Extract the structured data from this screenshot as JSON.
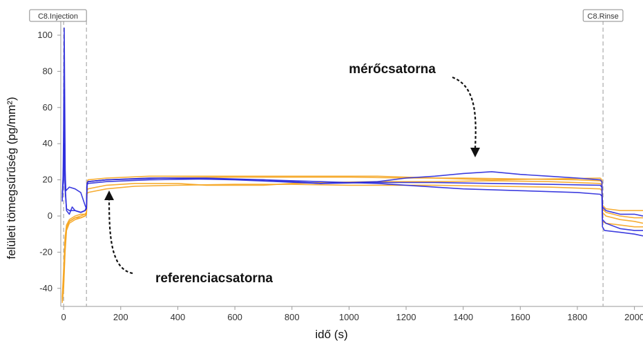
{
  "chart_data": {
    "type": "line",
    "xlabel": "idő (s)",
    "ylabel": "felületi tömegsűrűség (pg/mm²)",
    "xlim": [
      -10,
      2030
    ],
    "ylim": [
      -50,
      108
    ],
    "xticks": [
      0,
      200,
      400,
      600,
      800,
      1000,
      1200,
      1400,
      1600,
      1800,
      2000
    ],
    "yticks": [
      -40,
      -20,
      0,
      20,
      40,
      60,
      80,
      100
    ],
    "grid": false,
    "events": [
      {
        "label": "C8.Injection",
        "x": 80
      },
      {
        "label": "C8.Rinse",
        "x": 1890
      }
    ],
    "event_start_x": 0,
    "annotations": [
      {
        "text": "mérőcsatorna",
        "x": 1450,
        "y": 25
      },
      {
        "text": "referenciacsatorna",
        "x": 170,
        "y": 11
      }
    ],
    "colors": {
      "measurement": "#2b2bdc",
      "reference": "#f5a623"
    },
    "series": [
      {
        "group": "measurement",
        "color": "#2b2bdc",
        "points": [
          [
            -5,
            8
          ],
          [
            -2,
            20
          ],
          [
            0,
            50
          ],
          [
            2,
            104
          ],
          [
            4,
            60
          ],
          [
            6,
            15
          ],
          [
            10,
            3
          ],
          [
            20,
            1
          ],
          [
            30,
            5
          ],
          [
            40,
            3
          ],
          [
            60,
            2
          ],
          [
            75,
            3
          ],
          [
            80,
            5
          ],
          [
            82,
            18
          ],
          [
            85,
            19
          ],
          [
            150,
            20
          ],
          [
            250,
            20.5
          ],
          [
            350,
            21
          ],
          [
            600,
            20
          ],
          [
            900,
            18
          ],
          [
            1100,
            19
          ],
          [
            1200,
            21
          ],
          [
            1300,
            22
          ],
          [
            1400,
            23.5
          ],
          [
            1500,
            24.5
          ],
          [
            1600,
            23
          ],
          [
            1700,
            22
          ],
          [
            1800,
            21
          ],
          [
            1880,
            20
          ],
          [
            1886,
            19
          ],
          [
            1888,
            -6
          ],
          [
            1895,
            -8
          ],
          [
            1950,
            -9
          ],
          [
            2000,
            -10
          ],
          [
            2030,
            -11
          ]
        ]
      },
      {
        "group": "measurement",
        "color": "#2b2bdc",
        "points": [
          [
            -5,
            12
          ],
          [
            0,
            20
          ],
          [
            2,
            70
          ],
          [
            5,
            25
          ],
          [
            8,
            14
          ],
          [
            20,
            16
          ],
          [
            40,
            15
          ],
          [
            60,
            13
          ],
          [
            75,
            6
          ],
          [
            80,
            4
          ],
          [
            82,
            17
          ],
          [
            85,
            19
          ],
          [
            150,
            20
          ],
          [
            300,
            21
          ],
          [
            500,
            21
          ],
          [
            700,
            20
          ],
          [
            900,
            19
          ],
          [
            1000,
            18.5
          ],
          [
            1100,
            18
          ],
          [
            1200,
            17
          ],
          [
            1300,
            16
          ],
          [
            1400,
            15
          ],
          [
            1600,
            14
          ],
          [
            1800,
            13
          ],
          [
            1880,
            12
          ],
          [
            1886,
            11
          ],
          [
            1888,
            -2
          ],
          [
            1900,
            -4
          ],
          [
            1950,
            -7
          ],
          [
            2000,
            -8
          ],
          [
            2030,
            -8
          ]
        ]
      },
      {
        "group": "measurement",
        "color": "#2b2bdc",
        "points": [
          [
            -5,
            10
          ],
          [
            0,
            30
          ],
          [
            2,
            40
          ],
          [
            5,
            15
          ],
          [
            10,
            4
          ],
          [
            20,
            3
          ],
          [
            40,
            3
          ],
          [
            60,
            2
          ],
          [
            75,
            3
          ],
          [
            80,
            4
          ],
          [
            82,
            17
          ],
          [
            85,
            18
          ],
          [
            150,
            19
          ],
          [
            300,
            20
          ],
          [
            500,
            20.5
          ],
          [
            700,
            20
          ],
          [
            900,
            18
          ],
          [
            1100,
            18.5
          ],
          [
            1300,
            18.5
          ],
          [
            1500,
            18
          ],
          [
            1700,
            17.5
          ],
          [
            1880,
            17
          ],
          [
            1886,
            16
          ],
          [
            1888,
            5
          ],
          [
            1900,
            3
          ],
          [
            1950,
            1
          ],
          [
            2000,
            1
          ],
          [
            2030,
            0
          ]
        ]
      },
      {
        "group": "reference",
        "color": "#f5a623",
        "points": [
          [
            -5,
            -48
          ],
          [
            0,
            -40
          ],
          [
            5,
            -20
          ],
          [
            10,
            -8
          ],
          [
            20,
            -4
          ],
          [
            40,
            -2
          ],
          [
            60,
            -1
          ],
          [
            75,
            0
          ],
          [
            80,
            1
          ],
          [
            82,
            14
          ],
          [
            85,
            15
          ],
          [
            150,
            17
          ],
          [
            250,
            18
          ],
          [
            400,
            18
          ],
          [
            500,
            17
          ],
          [
            700,
            17
          ],
          [
            800,
            18
          ],
          [
            900,
            18.5
          ],
          [
            1100,
            19
          ],
          [
            1300,
            19
          ],
          [
            1500,
            19.5
          ],
          [
            1700,
            19
          ],
          [
            1880,
            18
          ],
          [
            1886,
            17
          ],
          [
            1888,
            4
          ],
          [
            1900,
            2
          ],
          [
            1950,
            0
          ],
          [
            2000,
            -1
          ],
          [
            2030,
            -1
          ]
        ]
      },
      {
        "group": "reference",
        "color": "#f5a623",
        "points": [
          [
            -5,
            -46
          ],
          [
            0,
            -35
          ],
          [
            5,
            -15
          ],
          [
            10,
            -6
          ],
          [
            20,
            -3
          ],
          [
            40,
            -1
          ],
          [
            60,
            0
          ],
          [
            75,
            1
          ],
          [
            80,
            2
          ],
          [
            82,
            12
          ],
          [
            85,
            13
          ],
          [
            150,
            15
          ],
          [
            250,
            16.5
          ],
          [
            400,
            17
          ],
          [
            600,
            17.5
          ],
          [
            800,
            17.5
          ],
          [
            1000,
            17
          ],
          [
            1100,
            17
          ],
          [
            1300,
            17
          ],
          [
            1500,
            16.5
          ],
          [
            1700,
            16
          ],
          [
            1880,
            15
          ],
          [
            1886,
            14
          ],
          [
            1888,
            2
          ],
          [
            1900,
            0
          ],
          [
            1950,
            -2
          ],
          [
            2000,
            -3
          ],
          [
            2030,
            -4
          ]
        ]
      },
      {
        "group": "reference",
        "color": "#f5a623",
        "points": [
          [
            -5,
            -45
          ],
          [
            0,
            -30
          ],
          [
            5,
            -12
          ],
          [
            10,
            -5
          ],
          [
            20,
            -2
          ],
          [
            40,
            0
          ],
          [
            60,
            1
          ],
          [
            75,
            1
          ],
          [
            80,
            2
          ],
          [
            82,
            18
          ],
          [
            85,
            19
          ],
          [
            150,
            20
          ],
          [
            300,
            21
          ],
          [
            600,
            21.5
          ],
          [
            800,
            21.5
          ],
          [
            1000,
            21.5
          ],
          [
            1200,
            21
          ],
          [
            1400,
            21
          ],
          [
            1600,
            20.5
          ],
          [
            1800,
            20
          ],
          [
            1880,
            19.5
          ],
          [
            1886,
            19
          ],
          [
            1888,
            6
          ],
          [
            1900,
            4
          ],
          [
            1950,
            3
          ],
          [
            2000,
            3
          ],
          [
            2030,
            3
          ]
        ]
      },
      {
        "group": "reference",
        "color": "#f5a623",
        "points": [
          [
            -5,
            -47
          ],
          [
            0,
            -38
          ],
          [
            5,
            -18
          ],
          [
            10,
            -7
          ],
          [
            20,
            -3
          ],
          [
            40,
            -1
          ],
          [
            60,
            -1
          ],
          [
            75,
            0
          ],
          [
            80,
            1
          ],
          [
            82,
            18
          ],
          [
            85,
            20
          ],
          [
            150,
            21
          ],
          [
            300,
            22
          ],
          [
            500,
            22
          ],
          [
            700,
            22
          ],
          [
            900,
            22
          ],
          [
            1100,
            22
          ],
          [
            1300,
            21
          ],
          [
            1500,
            20
          ],
          [
            1700,
            20.5
          ],
          [
            1880,
            21
          ],
          [
            1886,
            20
          ],
          [
            1888,
            -3
          ],
          [
            1900,
            -4
          ],
          [
            1950,
            -5
          ],
          [
            2000,
            -6
          ],
          [
            2030,
            -6
          ]
        ]
      }
    ]
  }
}
